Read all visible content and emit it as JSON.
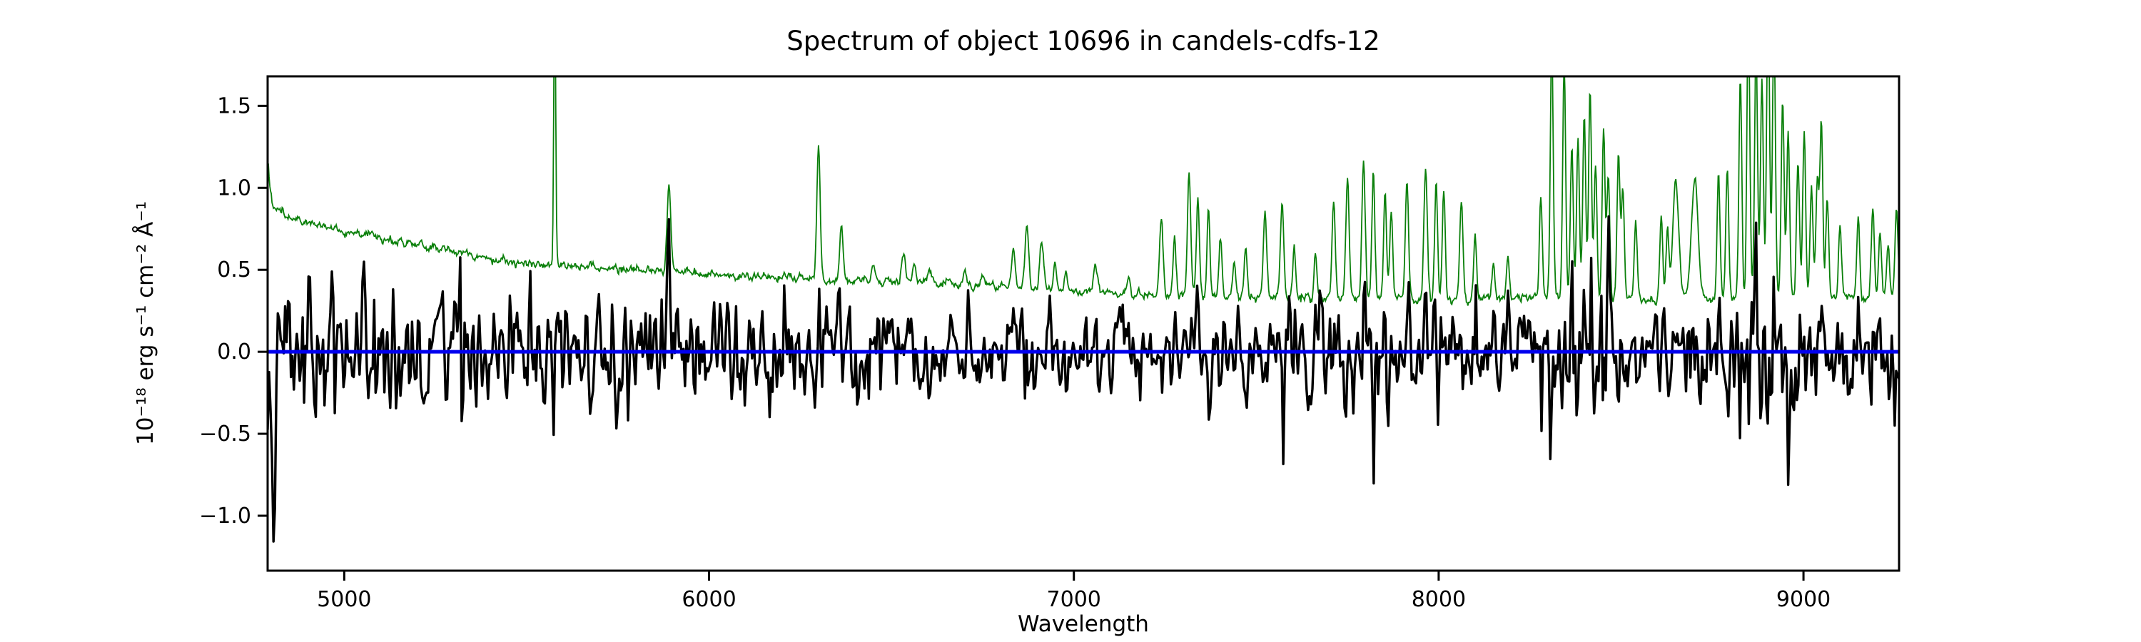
{
  "figure": {
    "title": "Spectrum of object 10696 in candels-cdfs-12",
    "xlabel": "Wavelength",
    "ylabel": "10⁻¹⁸ erg s⁻¹ cm⁻² Å⁻¹",
    "background_color": "#ffffff",
    "axis_color": "#000000"
  },
  "chart_data": {
    "type": "line",
    "title": "Spectrum of object 10696 in candels-cdfs-12",
    "xlabel": "Wavelength",
    "ylabel": "10⁻¹⁸ erg s⁻¹ cm⁻² Å⁻¹",
    "xlim": [
      4790,
      9262
    ],
    "ylim": [
      -1.335,
      1.68
    ],
    "xticks": [
      5000,
      6000,
      7000,
      8000,
      9000
    ],
    "yticks": [
      -1.0,
      -0.5,
      0.0,
      0.5,
      1.0,
      1.5
    ],
    "grid": false,
    "legend": null,
    "series": [
      {
        "name": "observed-flux",
        "color": "#000000",
        "linewidth": 3.4,
        "style": "solid",
        "description": "noisy observed flux centered on 0, typical band ±0.35 at blue end shrinking to ±0.25 at 7000, large excursions (+1.5/-1.2) at sky-line wavelengths",
        "generation": {
          "kind": "seeded-gaussian-noise",
          "seed": 1371,
          "step_angstrom": 4,
          "sigma_base": 0.13,
          "sigma_sky_coeff": 0.2,
          "sigma_sky_floor": 0.32,
          "edge_boost": 1.2,
          "edge_scale_angstrom": 15
        }
      },
      {
        "name": "noise-spectrum",
        "color": "#0b800b",
        "linewidth": 1.8,
        "style": "solid",
        "step_angstrom": 2,
        "jitter_sigma": 0.011,
        "continuum": [
          [
            4790,
            0.95
          ],
          [
            4791,
            1.16
          ],
          [
            4796,
            1.02
          ],
          [
            4803,
            0.9
          ],
          [
            4815,
            0.86
          ],
          [
            4840,
            0.84
          ],
          [
            4870,
            0.81
          ],
          [
            4900,
            0.785
          ],
          [
            4950,
            0.765
          ],
          [
            5000,
            0.735
          ],
          [
            5050,
            0.715
          ],
          [
            5100,
            0.695
          ],
          [
            5160,
            0.665
          ],
          [
            5230,
            0.64
          ],
          [
            5290,
            0.615
          ],
          [
            5360,
            0.585
          ],
          [
            5410,
            0.56
          ],
          [
            5480,
            0.545
          ],
          [
            5550,
            0.535
          ],
          [
            5620,
            0.525
          ],
          [
            5700,
            0.515
          ],
          [
            5800,
            0.5
          ],
          [
            5900,
            0.49
          ],
          [
            6000,
            0.475
          ],
          [
            6100,
            0.46
          ],
          [
            6250,
            0.445
          ],
          [
            6400,
            0.435
          ],
          [
            6550,
            0.425
          ],
          [
            6700,
            0.41
          ],
          [
            6850,
            0.395
          ],
          [
            7000,
            0.375
          ],
          [
            7100,
            0.36
          ],
          [
            7200,
            0.35
          ],
          [
            7350,
            0.34
          ],
          [
            7500,
            0.335
          ],
          [
            7700,
            0.33
          ],
          [
            7900,
            0.325
          ],
          [
            8100,
            0.32
          ],
          [
            8300,
            0.325
          ],
          [
            8500,
            0.322
          ],
          [
            8700,
            0.32
          ],
          [
            8900,
            0.325
          ],
          [
            9100,
            0.33
          ],
          [
            9262,
            0.345
          ]
        ],
        "sky_lines": [
          [
            5577,
            2.4,
            2.5
          ],
          [
            5890,
            1.03,
            5
          ],
          [
            6300,
            1.28,
            4.5
          ],
          [
            6363,
            0.78,
            4.5
          ],
          [
            6450,
            0.52,
            5
          ],
          [
            6533,
            0.6,
            5
          ],
          [
            6562,
            0.55,
            4
          ],
          [
            6604,
            0.52,
            4
          ],
          [
            6700,
            0.48,
            4
          ],
          [
            6750,
            0.46,
            4
          ],
          [
            6834,
            0.62,
            5
          ],
          [
            6871,
            0.78,
            5
          ],
          [
            6912,
            0.68,
            5
          ],
          [
            6948,
            0.55,
            4
          ],
          [
            6978,
            0.5,
            4
          ],
          [
            7060,
            0.52,
            5
          ],
          [
            7150,
            0.44,
            4
          ],
          [
            7240,
            0.78,
            5
          ],
          [
            7276,
            0.7,
            4
          ],
          [
            7316,
            1.08,
            4.5
          ],
          [
            7340,
            0.95,
            4
          ],
          [
            7369,
            0.88,
            4
          ],
          [
            7402,
            0.7,
            4
          ],
          [
            7440,
            0.55,
            4
          ],
          [
            7471,
            0.62,
            4
          ],
          [
            7524,
            0.85,
            4.5
          ],
          [
            7571,
            0.92,
            4.5
          ],
          [
            7604,
            0.65,
            4
          ],
          [
            7662,
            0.6,
            4
          ],
          [
            7712,
            0.92,
            4.5
          ],
          [
            7750,
            1.05,
            4.5
          ],
          [
            7794,
            1.17,
            4.5
          ],
          [
            7821,
            1.1,
            4
          ],
          [
            7853,
            0.95,
            4
          ],
          [
            7870,
            0.85,
            4
          ],
          [
            7913,
            1.02,
            4.5
          ],
          [
            7964,
            1.12,
            4.5
          ],
          [
            7993,
            1.05,
            4
          ],
          [
            8014,
            1.0,
            4
          ],
          [
            8062,
            0.92,
            4.5
          ],
          [
            8100,
            0.7,
            4
          ],
          [
            8150,
            0.55,
            4
          ],
          [
            8190,
            0.6,
            4
          ],
          [
            8280,
            0.95,
            4
          ],
          [
            8310,
            1.9,
            4
          ],
          [
            8344,
            1.75,
            4
          ],
          [
            8365,
            1.25,
            4
          ],
          [
            8382,
            1.3,
            4
          ],
          [
            8399,
            1.45,
            4
          ],
          [
            8415,
            1.6,
            4
          ],
          [
            8430,
            1.15,
            4
          ],
          [
            8452,
            1.35,
            4
          ],
          [
            8465,
            1.1,
            4
          ],
          [
            8493,
            1.2,
            4
          ],
          [
            8505,
            0.98,
            4
          ],
          [
            8540,
            0.78,
            4
          ],
          [
            8610,
            0.82,
            4
          ],
          [
            8627,
            0.75,
            4
          ],
          [
            8650,
            1.05,
            8
          ],
          [
            8702,
            1.05,
            9
          ],
          [
            8767,
            1.08,
            4
          ],
          [
            8791,
            1.12,
            4
          ],
          [
            8827,
            1.65,
            4
          ],
          [
            8849,
            2.1,
            4
          ],
          [
            8870,
            1.9,
            4
          ],
          [
            8886,
            1.65,
            4
          ],
          [
            8903,
            2.2,
            4
          ],
          [
            8919,
            2.0,
            4
          ],
          [
            8943,
            1.55,
            4
          ],
          [
            8958,
            1.35,
            4
          ],
          [
            8985,
            1.15,
            4
          ],
          [
            9002,
            1.35,
            4
          ],
          [
            9022,
            1.0,
            4
          ],
          [
            9038,
            1.05,
            4
          ],
          [
            9049,
            1.4,
            4
          ],
          [
            9065,
            0.95,
            4
          ],
          [
            9100,
            0.75,
            4
          ],
          [
            9150,
            0.82,
            4
          ],
          [
            9190,
            0.88,
            4
          ],
          [
            9210,
            0.72,
            4
          ],
          [
            9232,
            0.65,
            4
          ],
          [
            9255,
            0.88,
            4
          ],
          [
            9283,
            0.78,
            4
          ]
        ]
      },
      {
        "name": "model-zero-line",
        "color": "#0000ee",
        "linewidth": 5,
        "style": "solid",
        "y": 0.0
      }
    ],
    "tick_fontsize": 30,
    "tick_length": 14,
    "tick_width": 3,
    "spine_width": 3
  }
}
